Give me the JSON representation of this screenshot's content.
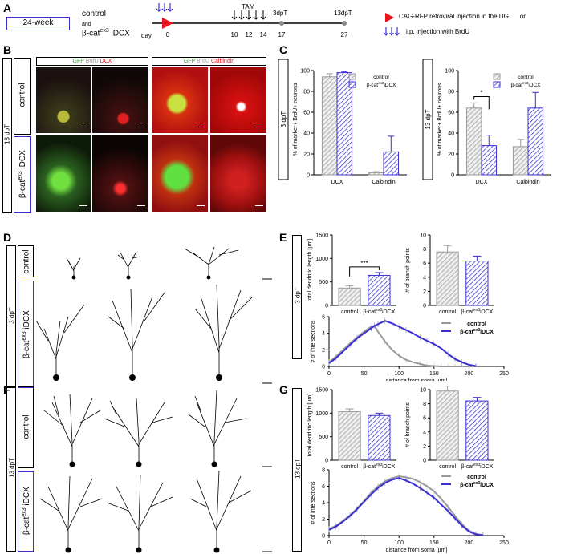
{
  "panelA": {
    "letter": "A",
    "age_box": "24-week",
    "group_control": "control",
    "group_and": "and",
    "group_bcat_prefix": "β-cat",
    "group_bcat_sup": "ex3",
    "group_bcat_suffix": " iDCX",
    "day_label": "day",
    "timeline_days": [
      "0",
      "10",
      "11",
      "12",
      "13",
      "14",
      "17",
      "27"
    ],
    "tam_label": "TAM",
    "dpt3_label": "3dpT",
    "dpt13_label": "13dpT",
    "legend_injection": "CAG-RFP retroviral injection in the DG",
    "legend_or": "or",
    "legend_brdu": "i.p. injection with BrdU"
  },
  "panelB": {
    "letter": "B",
    "dpt": "13 dpT",
    "row_control": "control",
    "row_bcat_prefix": "β-cat",
    "row_bcat_sup": "ex3",
    "row_bcat_suffix": " iDCX",
    "header_left_gfp": "GFP ",
    "header_left_brdu": "BrdU ",
    "header_left_dcx": "DCX",
    "header_right_gfp": "GFP ",
    "header_right_brdu": "BrdU ",
    "header_right_calb": "Calbindin"
  },
  "panelC": {
    "letter": "C",
    "colors": {
      "control": "#9a9a9a",
      "bcat": "#3a2fd0"
    }
  },
  "panelD": {
    "letter": "D",
    "dpt": "3 dpT",
    "row_control": "control",
    "row_bcat_prefix": "β-cat",
    "row_bcat_sup": "ex3",
    "row_bcat_suffix": " iDCX"
  },
  "panelE": {
    "letter": "E",
    "dpt": "3 dpT"
  },
  "panelF": {
    "letter": "F",
    "dpt": "13 dpT",
    "row_control": "control",
    "row_bcat_prefix": "β-cat",
    "row_bcat_sup": "ex3",
    "row_bcat_suffix": " iDCX"
  },
  "panelG": {
    "letter": "G",
    "dpt": "13 dpT"
  },
  "chart_data": [
    {
      "id": "C-3dpT",
      "type": "bar",
      "panel_label": "3 dpT",
      "ylabel": "% of marker+ BrdU+ neurons",
      "categories": [
        "DCX",
        "Calbindin"
      ],
      "ylim": [
        0,
        100
      ],
      "yticks": [
        "0",
        "20",
        "40",
        "60",
        "80",
        "100"
      ],
      "series": [
        {
          "name": "control",
          "values": [
            94,
            2
          ],
          "errors": [
            3,
            1
          ]
        },
        {
          "name": "β-cat ex3 iDCX",
          "values": [
            98,
            22
          ],
          "errors": [
            1,
            15
          ]
        }
      ],
      "legend": "top-right"
    },
    {
      "id": "C-13dpT",
      "type": "bar",
      "panel_label": "13 dpT",
      "ylabel": "% of marker+ BrdU+ neurons",
      "categories": [
        "DCX",
        "Calbindin"
      ],
      "ylim": [
        0,
        100
      ],
      "yticks": [
        "0",
        "20",
        "40",
        "60",
        "80",
        "100"
      ],
      "series": [
        {
          "name": "control",
          "values": [
            64,
            27
          ],
          "errors": [
            5,
            7
          ]
        },
        {
          "name": "β-cat ex3 iDCX",
          "values": [
            28,
            64
          ],
          "errors": [
            10,
            15
          ]
        }
      ],
      "annotation": "*",
      "legend": "top-right"
    },
    {
      "id": "E-length",
      "type": "bar",
      "ylabel": "total dendritic length [µm]",
      "categories": [
        "control",
        "β-cat ex3 iDCX"
      ],
      "ylim": [
        0,
        1500
      ],
      "yticks": [
        "0",
        "500",
        "1000",
        "1500"
      ],
      "values": [
        370,
        640
      ],
      "errors": [
        50,
        60
      ],
      "annotation": "***"
    },
    {
      "id": "E-branch",
      "type": "bar",
      "ylabel": "# of branch points",
      "categories": [
        "control",
        "β-cat ex3 iDCX"
      ],
      "ylim": [
        0,
        10
      ],
      "yticks": [
        "0",
        "2",
        "4",
        "6",
        "8",
        "10"
      ],
      "values": [
        7.6,
        6.3
      ],
      "errors": [
        0.9,
        0.7
      ]
    },
    {
      "id": "E-sholl",
      "type": "line",
      "xlabel": "distance from soma [µm]",
      "ylabel": "# of intersections",
      "xlim": [
        0,
        250
      ],
      "ylim": [
        0,
        6
      ],
      "xticks": [
        "0",
        "50",
        "100",
        "150",
        "200",
        "250"
      ],
      "yticks": [
        "0",
        "2",
        "4",
        "6"
      ],
      "x": [
        0,
        10,
        20,
        30,
        40,
        50,
        60,
        65,
        70,
        80,
        90,
        100,
        110,
        120,
        130,
        140,
        150,
        160,
        170,
        180,
        190,
        200,
        210
      ],
      "series": [
        {
          "name": "control",
          "values": [
            0.5,
            1.2,
            2.0,
            2.8,
            3.5,
            4.2,
            4.8,
            4.9,
            4.2,
            3.0,
            2.0,
            1.3,
            0.8,
            0.5,
            0.3,
            0.1,
            0.05,
            0,
            0,
            0,
            0,
            0,
            0
          ]
        },
        {
          "name": "β-cat ex3 iDCX",
          "values": [
            0.4,
            1.0,
            1.8,
            2.6,
            3.4,
            4.0,
            4.6,
            4.9,
            5.1,
            5.5,
            5.2,
            4.8,
            4.4,
            4.0,
            3.5,
            3.1,
            2.7,
            2.2,
            1.5,
            0.9,
            0.5,
            0.2,
            0.05
          ]
        }
      ],
      "legend": "top-right"
    },
    {
      "id": "G-length",
      "type": "bar",
      "ylabel": "total dendritic length [µm]",
      "categories": [
        "control",
        "β-cat ex3 iDCX"
      ],
      "ylim": [
        0,
        1500
      ],
      "yticks": [
        "0",
        "500",
        "1000",
        "1500"
      ],
      "values": [
        1030,
        950
      ],
      "errors": [
        60,
        50
      ]
    },
    {
      "id": "G-branch",
      "type": "bar",
      "ylabel": "# of branch points",
      "categories": [
        "control",
        "β-cat ex3 iDCX"
      ],
      "ylim": [
        0,
        10
      ],
      "yticks": [
        "0",
        "2",
        "4",
        "6",
        "8",
        "10"
      ],
      "values": [
        9.8,
        8.4
      ],
      "errors": [
        0.7,
        0.5
      ]
    },
    {
      "id": "G-sholl",
      "type": "line",
      "xlabel": "distance from soma [µm]",
      "ylabel": "# of intersections",
      "xlim": [
        0,
        250
      ],
      "ylim": [
        0,
        8
      ],
      "xticks": [
        "0",
        "50",
        "100",
        "150",
        "200",
        "250"
      ],
      "yticks": [
        "0",
        "2",
        "4",
        "6",
        "8"
      ],
      "x": [
        0,
        10,
        20,
        30,
        40,
        50,
        60,
        70,
        80,
        90,
        100,
        110,
        120,
        130,
        140,
        150,
        160,
        170,
        180,
        190,
        200,
        210,
        220
      ],
      "series": [
        {
          "name": "control",
          "values": [
            0.8,
            1.2,
            1.8,
            2.5,
            3.3,
            4.2,
            5.2,
            6.0,
            6.6,
            7.0,
            7.2,
            7.1,
            6.9,
            6.5,
            6.0,
            5.4,
            4.5,
            3.5,
            2.4,
            1.4,
            0.6,
            0.2,
            0.05
          ]
        },
        {
          "name": "β-cat ex3 iDCX",
          "values": [
            0.7,
            1.1,
            1.7,
            2.4,
            3.2,
            4.1,
            5.0,
            5.8,
            6.4,
            6.8,
            7.0,
            6.7,
            6.3,
            5.8,
            5.2,
            4.6,
            3.8,
            3.0,
            2.1,
            1.2,
            0.5,
            0.15,
            0.05
          ]
        }
      ],
      "legend": "top-right"
    }
  ]
}
